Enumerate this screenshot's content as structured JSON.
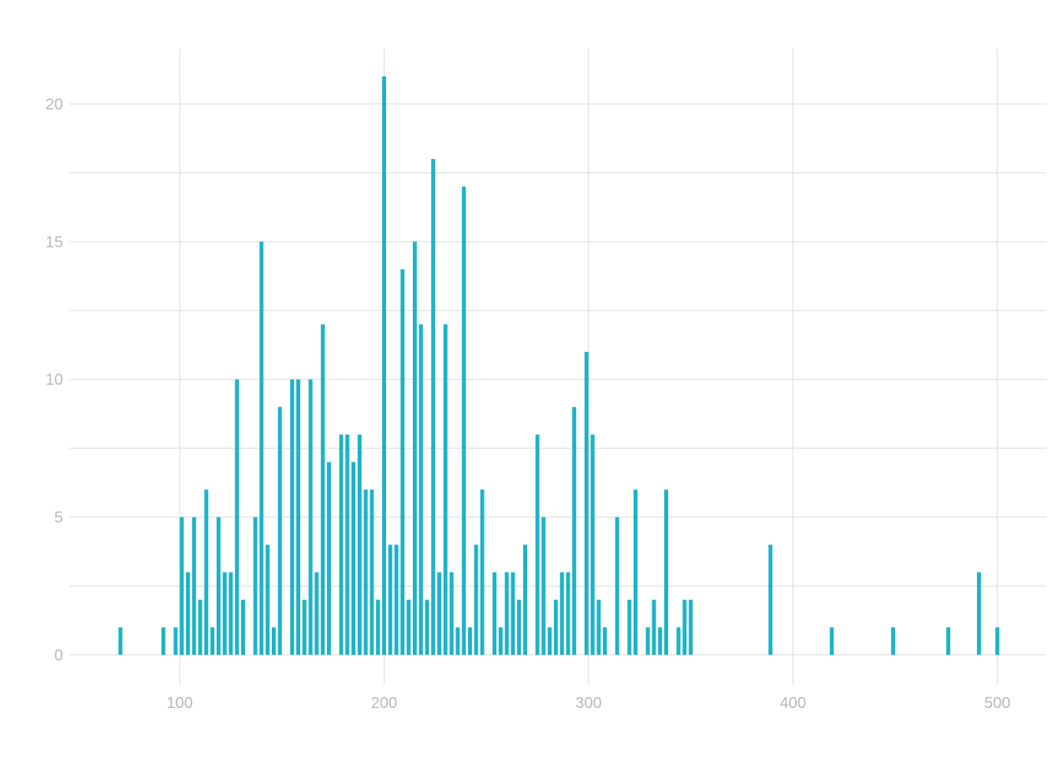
{
  "chart_data": {
    "type": "bar",
    "title": "",
    "xlabel": "",
    "ylabel": "",
    "xlim": [
      46,
      524
    ],
    "ylim": [
      -1.1,
      22
    ],
    "x_ticks": [
      "100",
      "200",
      "300",
      "400",
      "500"
    ],
    "y_ticks": [
      "0",
      "5",
      "10",
      "15",
      "20"
    ],
    "grid": true,
    "bar_color": "#1db3c7",
    "grid_color": "#d9d9d9",
    "series": [
      {
        "x": [
          71,
          92,
          98,
          101,
          104,
          107,
          110,
          113,
          116,
          119,
          122,
          125,
          128,
          131,
          137,
          140,
          143,
          146,
          149,
          155,
          158,
          161,
          164,
          167,
          170,
          173,
          179,
          182,
          185,
          188,
          191,
          194,
          197,
          200,
          203,
          206,
          209,
          212,
          215,
          218,
          221,
          224,
          227,
          230,
          233,
          236,
          239,
          242,
          245,
          248,
          254,
          257,
          260,
          263,
          266,
          269,
          275,
          278,
          281,
          284,
          287,
          290,
          293,
          299,
          302,
          305,
          308,
          314,
          320,
          323,
          329,
          332,
          335,
          338,
          344,
          347,
          350,
          389,
          419,
          449,
          476,
          491,
          500
        ],
        "values": [
          1,
          1,
          1,
          5,
          3,
          5,
          2,
          6,
          1,
          5,
          3,
          3,
          10,
          2,
          5,
          15,
          4,
          1,
          9,
          10,
          10,
          2,
          10,
          3,
          12,
          7,
          8,
          8,
          7,
          8,
          6,
          6,
          2,
          21,
          4,
          4,
          14,
          2,
          15,
          12,
          2,
          18,
          3,
          12,
          3,
          1,
          17,
          1,
          4,
          6,
          3,
          1,
          3,
          3,
          2,
          4,
          8,
          5,
          1,
          2,
          3,
          3,
          9,
          11,
          8,
          2,
          1,
          5,
          2,
          6,
          1,
          2,
          1,
          6,
          1,
          2,
          2,
          4,
          1,
          1,
          1,
          3,
          1
        ]
      }
    ]
  }
}
